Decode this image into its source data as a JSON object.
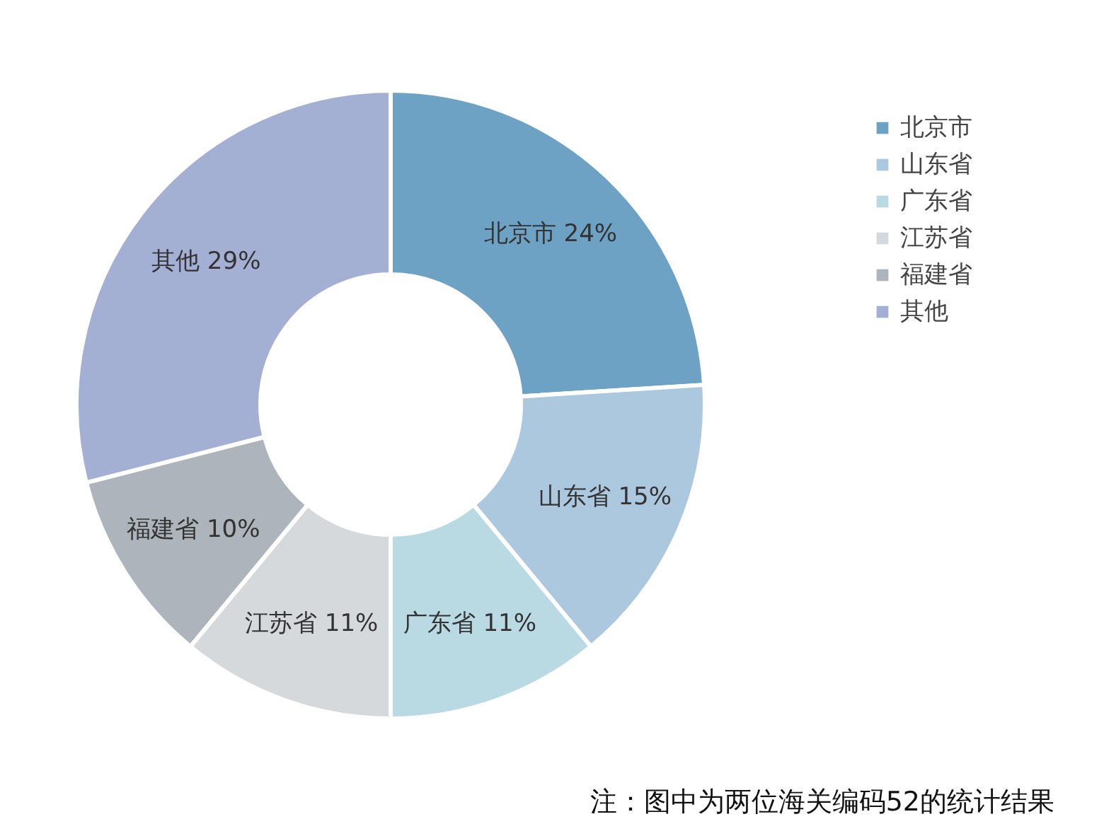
{
  "chart_data": {
    "type": "donut",
    "categories": [
      "北京市",
      "山东省",
      "广东省",
      "江苏省",
      "福建省",
      "其他"
    ],
    "values": [
      24,
      15,
      11,
      11,
      10,
      29
    ],
    "colors": [
      "#6ea2c4",
      "#abc8de",
      "#b9dae3",
      "#d6d9dc",
      "#adb4bb",
      "#a3b0d4"
    ],
    "value_labels": [
      "北京市 24%",
      "山东省 15%",
      "广东省 11%",
      "江苏省 11%",
      "福建省 10%",
      "其他 29%"
    ],
    "legend": "top right",
    "annotations": [
      "注：图中为两位海关编码52的统计结果"
    ]
  }
}
